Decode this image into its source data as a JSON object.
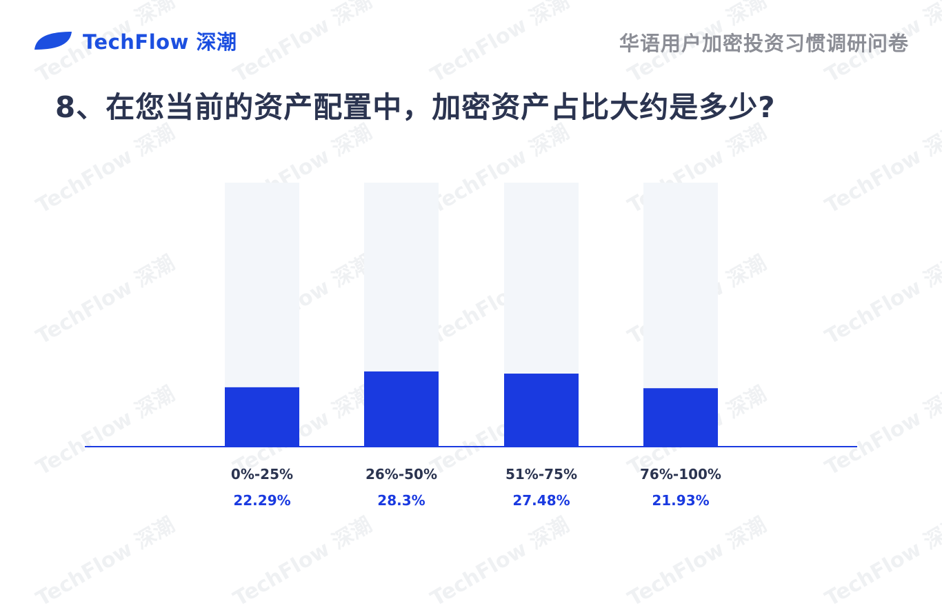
{
  "header": {
    "brand": "TechFlow 深潮",
    "survey_title": "华语用户加密投资习惯调研问卷"
  },
  "question": "8、在您当前的资产配置中，加密资产占比大约是多少?",
  "watermark": "TechFlow 深潮",
  "colors": {
    "bar": "#1a3ae0",
    "track": "#f3f6fa",
    "axis": "#1a3ae0",
    "brand": "#1c4fe0"
  },
  "chart_data": {
    "type": "bar",
    "categories": [
      "0%-25%",
      "26%-50%",
      "51%-75%",
      "76%-100%"
    ],
    "values": [
      22.29,
      28.3,
      27.48,
      21.93
    ],
    "value_labels": [
      "22.29%",
      "28.3%",
      "27.48%",
      "21.93%"
    ],
    "ylim": [
      0,
      100
    ],
    "grid": false,
    "legend": "none"
  }
}
